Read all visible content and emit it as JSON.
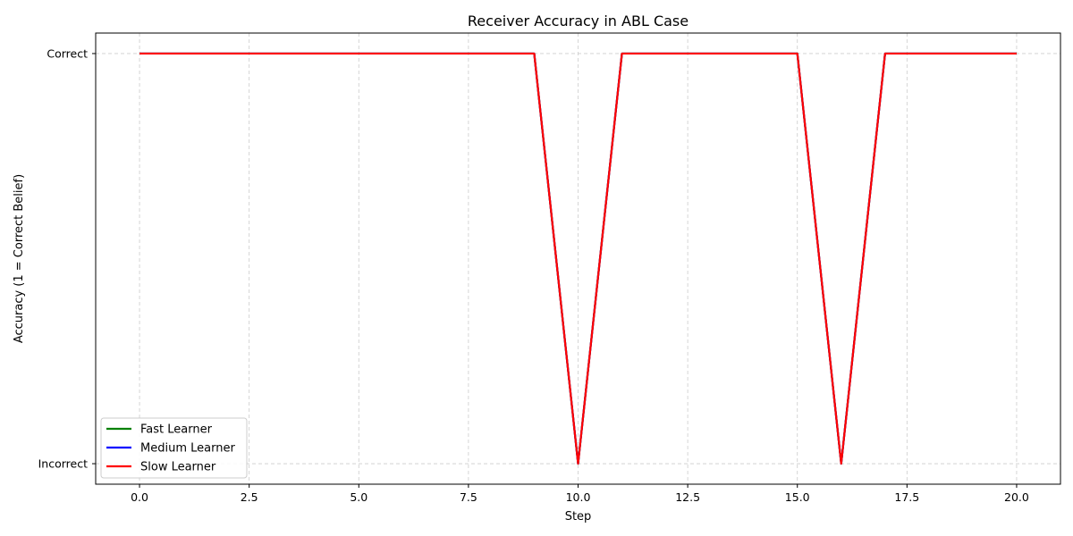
{
  "chart_data": {
    "type": "line",
    "title": "Receiver Accuracy in ABL Case",
    "xlabel": "Step",
    "ylabel": "Accuracy (1 = Correct Belief)",
    "xlim": [
      -1,
      21
    ],
    "ylim": [
      -0.05,
      1.05
    ],
    "x_ticks": [
      0,
      2.5,
      5,
      7.5,
      10,
      12.5,
      15,
      17.5,
      20
    ],
    "x_tick_labels": [
      "0.0",
      "2.5",
      "5.0",
      "7.5",
      "10.0",
      "12.5",
      "15.0",
      "17.5",
      "20.0"
    ],
    "y_ticks": [
      0,
      1
    ],
    "y_tick_labels": [
      "Incorrect",
      "Correct"
    ],
    "grid": true,
    "legend_position": "bottom-left",
    "x": [
      0,
      1,
      2,
      3,
      4,
      5,
      6,
      7,
      8,
      9,
      10,
      11,
      12,
      13,
      14,
      15,
      16,
      17,
      18,
      19,
      20
    ],
    "series": [
      {
        "name": "Fast Learner",
        "color": "#008000",
        "values": [
          1,
          1,
          1,
          1,
          1,
          1,
          1,
          1,
          1,
          1,
          0,
          1,
          1,
          1,
          1,
          1,
          0,
          1,
          1,
          1,
          1
        ]
      },
      {
        "name": "Medium Learner",
        "color": "#0000ff",
        "values": [
          1,
          1,
          1,
          1,
          1,
          1,
          1,
          1,
          1,
          1,
          0,
          1,
          1,
          1,
          1,
          1,
          0,
          1,
          1,
          1,
          1
        ]
      },
      {
        "name": "Slow Learner",
        "color": "#ff0000",
        "values": [
          1,
          1,
          1,
          1,
          1,
          1,
          1,
          1,
          1,
          1,
          0,
          1,
          1,
          1,
          1,
          1,
          0,
          1,
          1,
          1,
          1
        ]
      }
    ]
  }
}
